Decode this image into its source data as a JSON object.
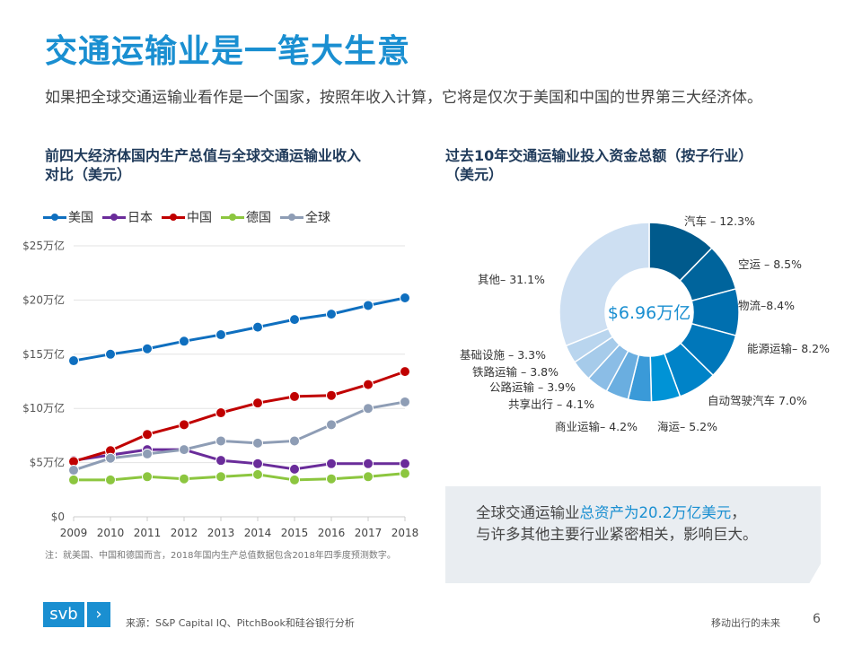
{
  "title": "交通运输业是一笔大生意",
  "subtitle": "如果把全球交通运输业看作是一个国家，按照年收入计算，它将是仅次于美国和中国的世界第三大经济体。",
  "left_chart_title": [
    "前四大经济体国内生产总值与全球交通运输业收入",
    "对比（美元）"
  ],
  "right_chart_title": [
    "过去10年交通运输业投入资金总额（按子行业）",
    "（美元）"
  ],
  "note": "注：就美国、中国和德国而言，2018年国内生产总值数据包含2018年四季度预测数字。",
  "callout": {
    "pre": "全球交通运输业",
    "highlight": "总资产为20.2万亿美元",
    "post": "，",
    "line2": "与许多其他主要行业紧密相关，影响巨大。"
  },
  "footer": {
    "logo": "svb",
    "source": "来源：S&P Capital IQ、PitchBook和硅谷银行分析",
    "right": "移动出行的未来",
    "page": "6"
  },
  "chart_data": [
    {
      "type": "line",
      "x": [
        2009,
        2010,
        2011,
        2012,
        2013,
        2014,
        2015,
        2016,
        2017,
        2018
      ],
      "yticks": [
        "$0",
        "$5万亿",
        "$10万亿",
        "$15万亿",
        "$20万亿",
        "$25万亿"
      ],
      "ylim": [
        0,
        25
      ],
      "grid": true,
      "legend": "top",
      "series": [
        {
          "name": "美国",
          "color": "#0f6fbf",
          "values": [
            14.4,
            15.0,
            15.5,
            16.2,
            16.8,
            17.5,
            18.2,
            18.7,
            19.5,
            20.2
          ]
        },
        {
          "name": "日本",
          "color": "#6a2c9a",
          "values": [
            5.2,
            5.7,
            6.2,
            6.2,
            5.2,
            4.9,
            4.4,
            4.9,
            4.9,
            4.9
          ]
        },
        {
          "name": "中国",
          "color": "#c00000",
          "values": [
            5.1,
            6.1,
            7.6,
            8.5,
            9.6,
            10.5,
            11.1,
            11.2,
            12.2,
            13.4
          ]
        },
        {
          "name": "德国",
          "color": "#8cc63f",
          "values": [
            3.4,
            3.4,
            3.7,
            3.5,
            3.7,
            3.9,
            3.4,
            3.5,
            3.7,
            4.0
          ]
        },
        {
          "name": "全球",
          "color": "#8e9db5",
          "values": [
            4.3,
            5.4,
            5.8,
            6.2,
            7.0,
            6.8,
            7.0,
            8.5,
            10.0,
            10.6
          ]
        }
      ]
    },
    {
      "type": "pie",
      "donut": true,
      "center_label": "$6.96万亿",
      "slices": [
        {
          "label": "汽车 – 12.3%",
          "value": 12.3,
          "color": "#005a8c"
        },
        {
          "label": "空运 – 8.5%",
          "value": 8.5,
          "color": "#00649c"
        },
        {
          "label": "物流–8.4%",
          "value": 8.4,
          "color": "#006faf"
        },
        {
          "label": "能源运输– 8.2%",
          "value": 8.2,
          "color": "#0077ba"
        },
        {
          "label": "自动驾驶汽车  7.0%",
          "value": 7.0,
          "color": "#0083c8"
        },
        {
          "label": "海运– 5.2%",
          "value": 5.2,
          "color": "#0093d6"
        },
        {
          "label": "商业运输– 4.2%",
          "value": 4.2,
          "color": "#3a9ad8"
        },
        {
          "label": "共享出行 – 4.1%",
          "value": 4.1,
          "color": "#6aaee0"
        },
        {
          "label": "公路运输 – 3.9%",
          "value": 3.9,
          "color": "#8bbde6"
        },
        {
          "label": "铁路运输 – 3.8%",
          "value": 3.8,
          "color": "#a6cbea"
        },
        {
          "label": "基础设施 – 3.3%",
          "value": 3.3,
          "color": "#b9d5ee"
        },
        {
          "label": "其他– 31.1%",
          "value": 31.1,
          "color": "#cddff2"
        }
      ]
    }
  ]
}
